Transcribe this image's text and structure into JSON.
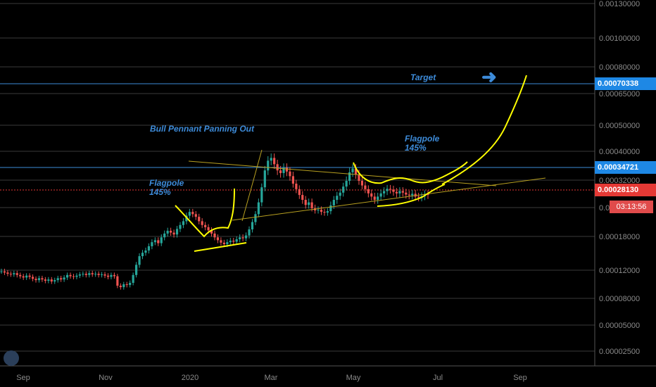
{
  "chart_data": {
    "type": "candlestick",
    "y_scale": "log",
    "ylim": [
      2.25e-05,
      0.00013
    ],
    "y_ticks": [
      "0.00130000",
      "0.00100000",
      "0.00080000",
      "0.00065000",
      "0.00050000",
      "0.00040000",
      "0.00032000",
      "0.00025000",
      "0.00018000",
      "0.00012000",
      "0.00008000",
      "0.00005000",
      "0.00002500"
    ],
    "x_ticks": [
      "Sep",
      "Nov",
      "2020",
      "Mar",
      "May",
      "Jul",
      "Sep"
    ],
    "price_badges": [
      {
        "value": "0.00070338",
        "color": "#1e88e5"
      },
      {
        "value": "0.00034721",
        "color": "#1e88e5"
      },
      {
        "value": "0.00028130",
        "color": "#e53935"
      }
    ],
    "countdown": "03:13:56",
    "annotations": [
      {
        "text": "Target"
      },
      {
        "text": "Bull Pennant Panning Out"
      },
      {
        "text": "Flagpole"
      },
      {
        "text": "145%"
      },
      {
        "text": "Flagpole"
      },
      {
        "text": "145%"
      }
    ],
    "series_close": [
      0.000118,
      0.000116,
      0.000114,
      0.000113,
      0.000115,
      0.000112,
      0.00011,
      0.000108,
      0.000111,
      0.000109,
      0.000106,
      0.000104,
      0.000107,
      0.000105,
      0.000103,
      0.000105,
      0.000102,
      0.000104,
      0.000107,
      0.000105,
      0.000108,
      0.000112,
      0.00011,
      0.000109,
      0.000111,
      0.000113,
      0.000114,
      0.000112,
      0.000115,
      0.000113,
      0.000114,
      0.000112,
      0.000113,
      0.000111,
      0.000109,
      0.000112,
      0.00011,
      9.6e-05,
      9.4e-05,
      9.8e-05,
      9.7e-05,
      0.0001,
      0.000112,
      0.000128,
      0.000142,
      0.000148,
      0.000152,
      0.00016,
      0.000168,
      0.000172,
      0.000166,
      0.000178,
      0.000186,
      0.000192,
      0.000188,
      0.000184,
      0.000196,
      0.000205,
      0.000214,
      0.000228,
      0.000238,
      0.000232,
      0.000225,
      0.000214,
      0.000205,
      0.0002,
      0.000193,
      0.000186,
      0.000178,
      0.000172,
      0.000167,
      0.000164,
      0.000168,
      0.000171,
      0.000169,
      0.000174,
      0.000178,
      0.000176,
      0.000182,
      0.000195,
      0.000212,
      0.000232,
      0.000262,
      0.0003,
      0.000345,
      0.000372,
      0.00038,
      0.000362,
      0.000345,
      0.000338,
      0.000352,
      0.000342,
      0.00033,
      0.00031,
      0.000295,
      0.00028,
      0.000268,
      0.000256,
      0.000262,
      0.000248,
      0.000242,
      0.000244,
      0.000238,
      0.000236,
      0.00024,
      0.000255,
      0.000268,
      0.000278,
      0.000286,
      0.000302,
      0.000318,
      0.00034,
      0.00035,
      0.000335,
      0.000318,
      0.000305,
      0.000295,
      0.000284,
      0.000276,
      0.000268,
      0.000276,
      0.000284,
      0.00029,
      0.000296,
      0.000294,
      0.000288,
      0.000284,
      0.00029,
      0.000286,
      0.000281,
      0.000279,
      0.000283,
      0.000276,
      0.000274,
      0.000277,
      0.000282,
      0.00028
    ]
  }
}
